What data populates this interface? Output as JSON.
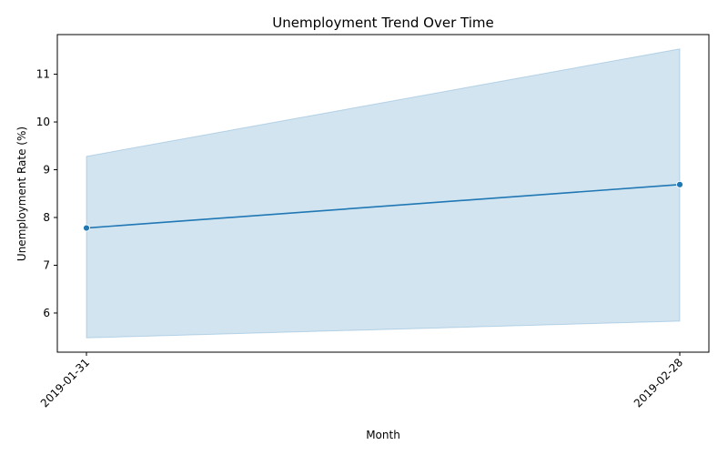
{
  "chart_data": {
    "type": "line",
    "title": "Unemployment Trend Over Time",
    "xlabel": "Month",
    "ylabel": "Unemployment Rate (%)",
    "x": [
      "2019-01-31",
      "2019-02-28"
    ],
    "series": [
      {
        "values": [
          7.78,
          8.69
        ],
        "ci_lower": [
          5.48,
          5.83
        ],
        "ci_upper": [
          9.28,
          11.53
        ],
        "color": "#1f77b4",
        "band_color": "#1f77b4"
      }
    ],
    "yticks": [
      6,
      7,
      8,
      9,
      10,
      11
    ],
    "ylim": [
      5.18,
      11.83
    ],
    "grid": false,
    "legend": "none"
  }
}
